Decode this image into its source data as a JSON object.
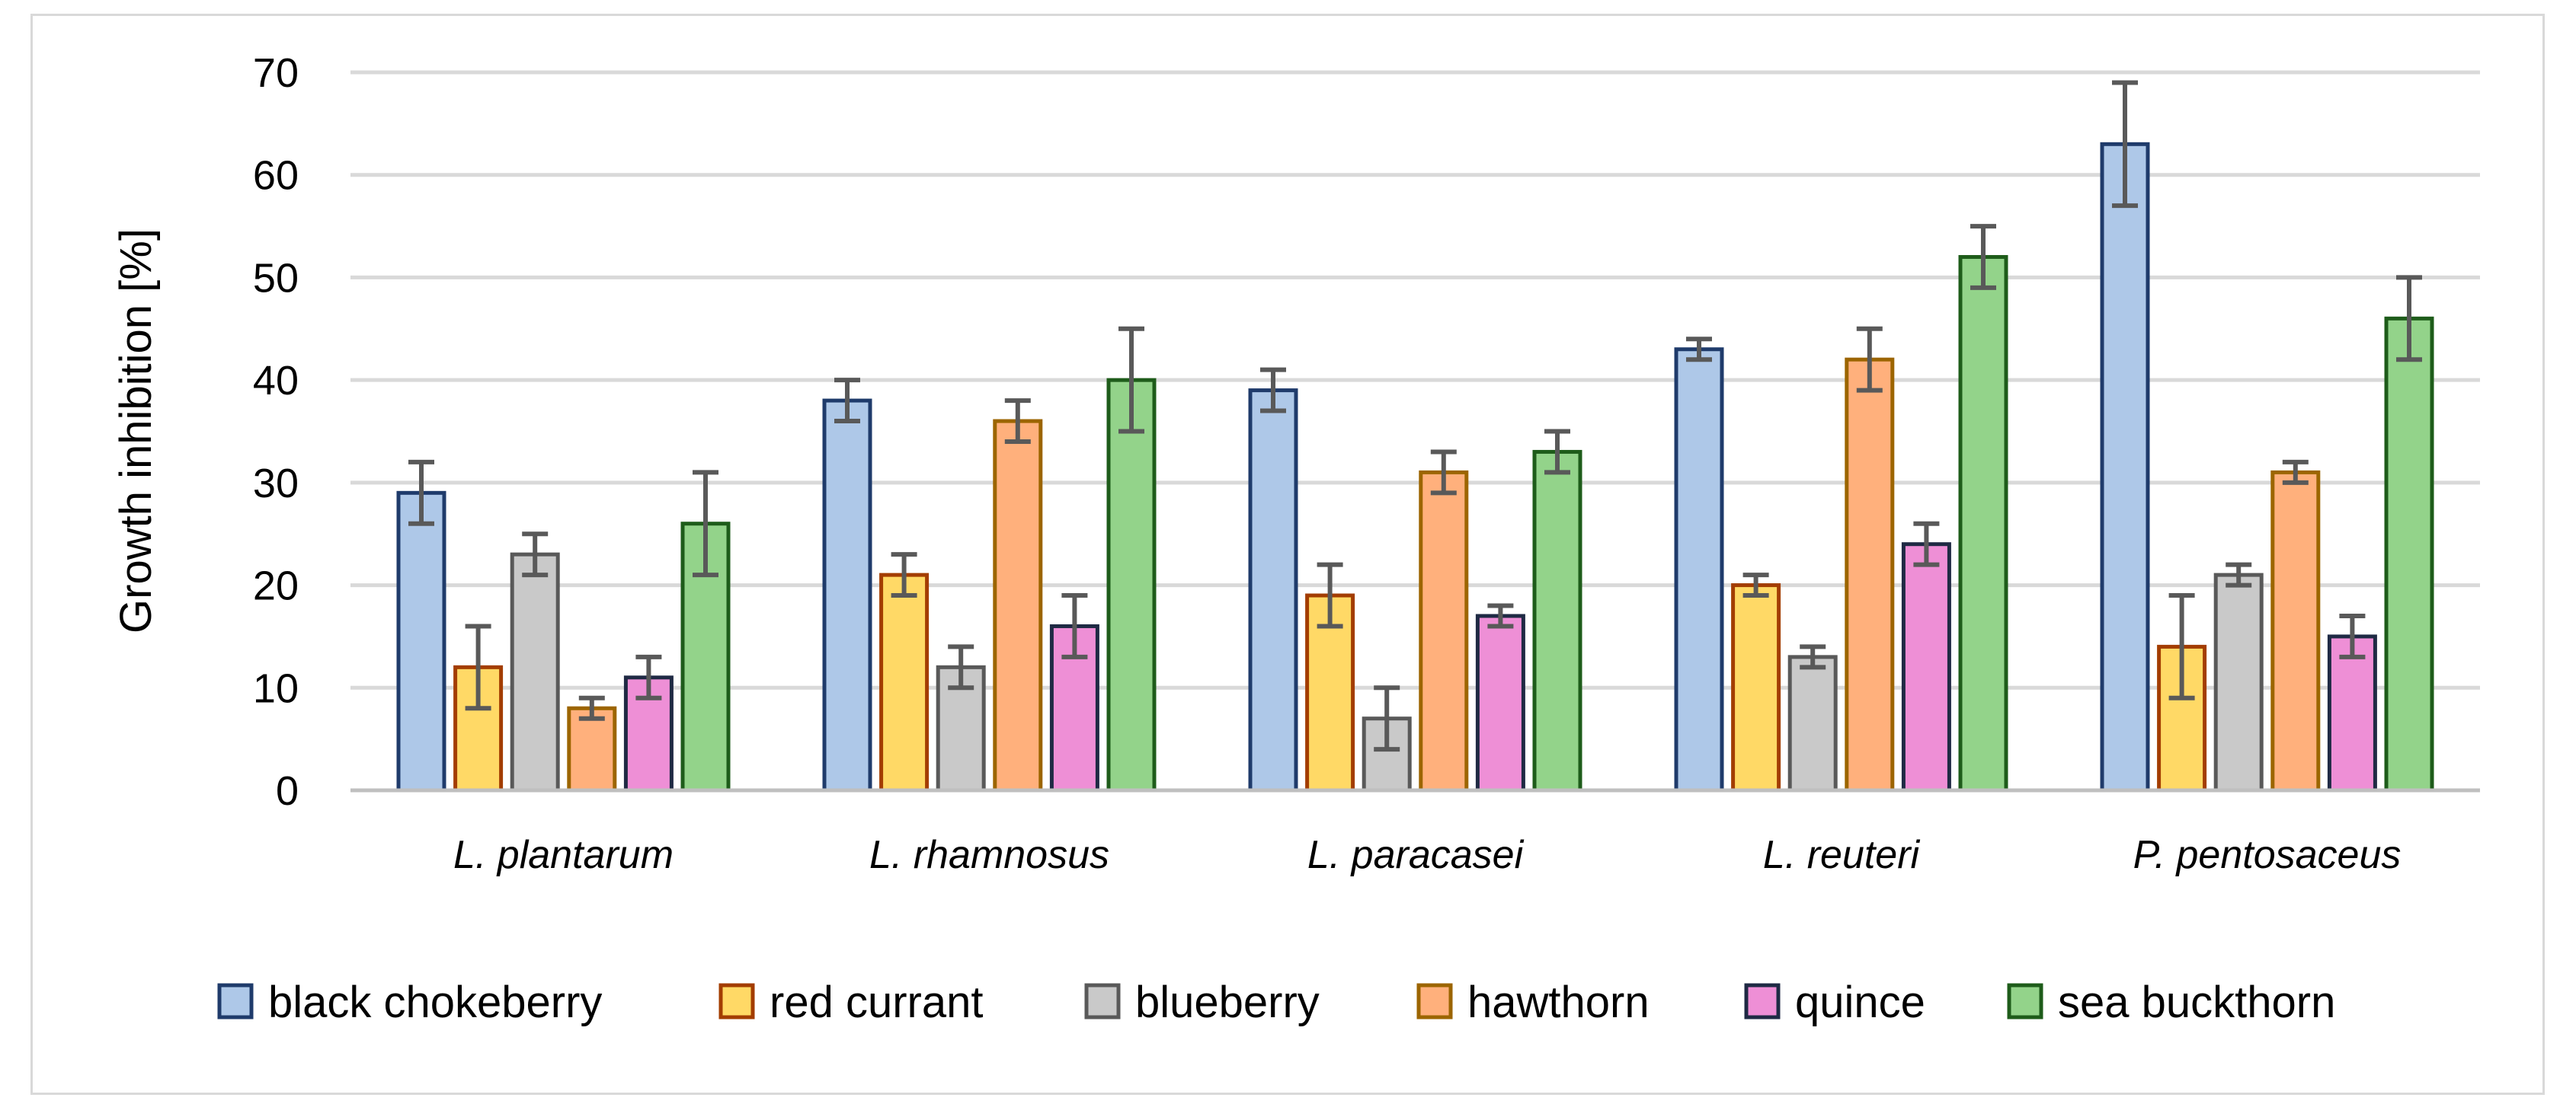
{
  "chart_data": {
    "type": "bar",
    "title": "",
    "xlabel": "",
    "ylabel": "Growth inhibition [%]",
    "ylim": [
      0,
      70
    ],
    "yticks": [
      0,
      10,
      20,
      30,
      40,
      50,
      60,
      70
    ],
    "grid": true,
    "legend_position": "bottom",
    "categories": [
      "L. plantarum",
      "L. rhamnosus",
      "L. paracasei",
      "L. reuteri",
      "P. pentosaceus"
    ],
    "series": [
      {
        "name": "black chokeberry",
        "fill": "#aec8e8",
        "stroke": "#1f3b6b",
        "values": [
          29,
          38,
          39,
          43,
          63
        ],
        "errors": [
          3,
          2,
          2,
          1,
          6
        ]
      },
      {
        "name": "red currant",
        "fill": "#ffd966",
        "stroke": "#a33d00",
        "values": [
          12,
          21,
          19,
          20,
          14
        ],
        "errors": [
          4,
          2,
          3,
          1,
          5
        ]
      },
      {
        "name": "blueberry",
        "fill": "#c9c9c9",
        "stroke": "#595959",
        "values": [
          23,
          12,
          7,
          13,
          21
        ],
        "errors": [
          2,
          2,
          3,
          1,
          1
        ]
      },
      {
        "name": "hawthorn",
        "fill": "#ffb07c",
        "stroke": "#9c6500",
        "values": [
          8,
          36,
          31,
          42,
          31
        ],
        "errors": [
          1,
          2,
          2,
          3,
          1
        ]
      },
      {
        "name": "quince",
        "fill": "#ee8fd6",
        "stroke": "#1f2a44",
        "values": [
          11,
          16,
          17,
          24,
          15
        ],
        "errors": [
          2,
          3,
          1,
          2,
          2
        ]
      },
      {
        "name": "sea buckthorn",
        "fill": "#93d38a",
        "stroke": "#1e5c1a",
        "values": [
          26,
          40,
          33,
          52,
          46
        ],
        "errors": [
          5,
          5,
          2,
          3,
          4
        ]
      }
    ],
    "colors": {
      "grid": "#d9d9d9",
      "axis": "#bfbfbf",
      "errorbar": "#595959"
    }
  }
}
